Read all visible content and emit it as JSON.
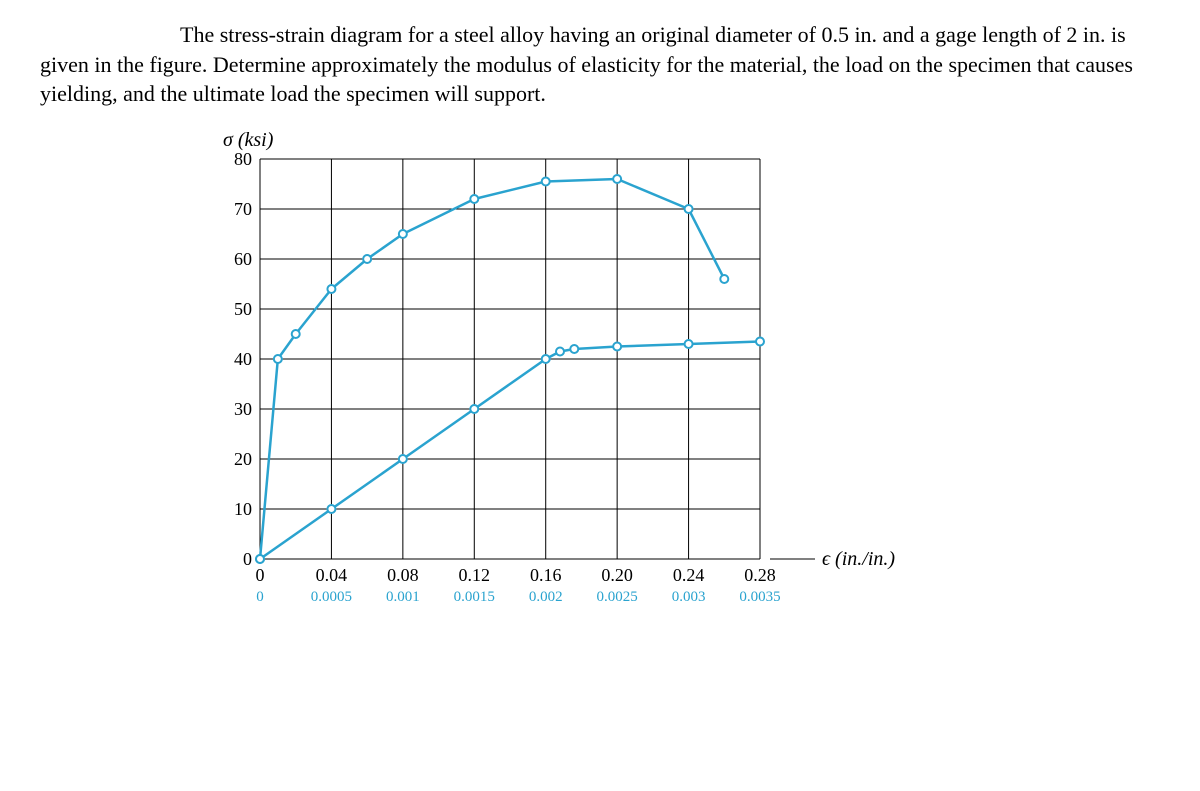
{
  "text": {
    "p": "The stress-strain diagram for a steel alloy having an original diameter of 0.5 in. and a gage length of 2 in. is given in the figure. Determine approximately the modulus of elasticity for the material, the load on the specimen that causes yielding, and the ultimate load the specimen will support."
  },
  "chart": {
    "type": "line",
    "ylabel": "σ (ksi)",
    "xlabel": "ϵ (in./in.)",
    "ylim": [
      0,
      80
    ],
    "ytick_step": 10,
    "x_ticks_upper": [
      "0",
      "0.04",
      "0.08",
      "0.12",
      "0.16",
      "0.20",
      "0.24",
      "0.28"
    ],
    "x_ticks_lower": [
      "0",
      "0.0005",
      "0.001",
      "0.0015",
      "0.002",
      "0.0025",
      "0.003",
      "0.0035"
    ],
    "background_color": "#ffffff",
    "grid_color": "#000000",
    "axis_color": "#000000",
    "line_color": "#2aa3cf",
    "second_axis_color": "#2aa3cf",
    "marker_fill": "#ffffff",
    "marker_stroke": "#2aa3cf",
    "line_width": 2.5,
    "marker_radius": 4,
    "label_fontsize": 20,
    "tick_fontsize": 18,
    "tick_fontsize_lower": 15,
    "upper_curve": [
      {
        "x": 0.0,
        "y": 0
      },
      {
        "x": 0.01,
        "y": 40
      },
      {
        "x": 0.02,
        "y": 45
      },
      {
        "x": 0.04,
        "y": 54
      },
      {
        "x": 0.06,
        "y": 60
      },
      {
        "x": 0.08,
        "y": 65
      },
      {
        "x": 0.12,
        "y": 72
      },
      {
        "x": 0.16,
        "y": 75.5
      },
      {
        "x": 0.2,
        "y": 76
      },
      {
        "x": 0.24,
        "y": 70
      },
      {
        "x": 0.26,
        "y": 56
      }
    ],
    "lower_curve": [
      {
        "x": 0.0,
        "y": 0
      },
      {
        "x": 0.0005,
        "y": 10
      },
      {
        "x": 0.001,
        "y": 20
      },
      {
        "x": 0.0015,
        "y": 30
      },
      {
        "x": 0.002,
        "y": 40
      },
      {
        "x": 0.0021,
        "y": 41.5
      },
      {
        "x": 0.0022,
        "y": 42
      },
      {
        "x": 0.0025,
        "y": 42.5
      },
      {
        "x": 0.003,
        "y": 43
      },
      {
        "x": 0.0035,
        "y": 43.5
      }
    ]
  }
}
